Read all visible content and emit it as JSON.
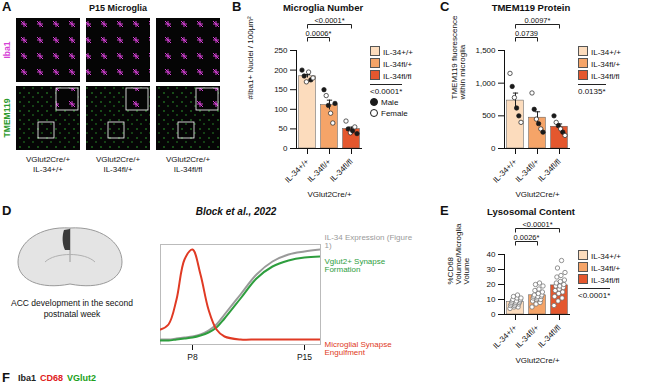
{
  "panel_A": {
    "panel": "A",
    "title": "P15 Microglia",
    "rows": [
      "Iba1",
      "TMEM119"
    ],
    "columns": [
      [
        "VGlut2Cre/+",
        "IL-34+/+"
      ],
      [
        "VGlut2Cre/+",
        "IL-34fl/+"
      ],
      [
        "VGlut2Cre/+",
        "IL-34fl/fl"
      ]
    ]
  },
  "marker_legend": {
    "panel": "B",
    "labels": [
      "Male",
      "Female"
    ]
  },
  "panel_F": {
    "panel": "F",
    "labels": [
      "Iba1",
      "CD68",
      "VGlut2"
    ],
    "colors": [
      "#222222",
      "#e02020",
      "#20a020"
    ]
  },
  "chart_data": [
    {
      "type": "bar",
      "panel": "B",
      "title": "Microglia Number",
      "ylabel": "#Iba1+ Nuclei / 100µm²",
      "xlabel": "VGlut2Cre/+",
      "categories": [
        "IL-34+/+",
        "IL-34fl/+",
        "IL-34fl/fl"
      ],
      "values": [
        184.2,
        110.8,
        49.7
      ],
      "errors": [
        4.5,
        12.5,
        4.8
      ],
      "colors": [
        "#fcdcbd",
        "#f5a468",
        "#e4572e"
      ],
      "points": [
        [
          200,
          185,
          170,
          195,
          175,
          180
        ],
        [
          150,
          135,
          110,
          90,
          65,
          115
        ],
        [
          70,
          50,
          40,
          45,
          55,
          38
        ]
      ],
      "point_groups": [
        [
          "Male",
          "Male",
          "Female",
          "Female",
          "Male",
          "Female"
        ],
        [
          "Male",
          "Female",
          "Male",
          "Female",
          "Female",
          "Male"
        ],
        [
          "Female",
          "Male",
          "Female",
          "Male",
          "Female",
          "Male"
        ]
      ],
      "comparisons": [
        {
          "from": 0,
          "to": 1,
          "label": "0.0006*"
        },
        {
          "from": 0,
          "to": 2,
          "label": "<0.0001*"
        }
      ],
      "anova": "<0.0001*",
      "ylim": [
        0,
        250
      ],
      "yticks": [
        0,
        50,
        100,
        150,
        200,
        250
      ],
      "legend": "right"
    },
    {
      "type": "bar",
      "panel": "C",
      "title": "TMEM119 Protein",
      "ylabel": "TMEM119 fluorescence within microglia",
      "xlabel": "VGlut2Cre/+",
      "categories": [
        "IL-34+/+",
        "IL-34fl/+",
        "IL-34fl/fl"
      ],
      "values": [
        733.3,
        471.7,
        333.3
      ],
      "errors": [
        115,
        90,
        43
      ],
      "colors": [
        "#fcdcbd",
        "#f5a468",
        "#e4572e"
      ],
      "points": [
        [
          1150,
          950,
          780,
          620,
          500,
          400
        ],
        [
          850,
          600,
          450,
          380,
          300,
          250
        ],
        [
          500,
          400,
          350,
          300,
          250,
          200
        ]
      ],
      "point_groups": [
        [
          "Female",
          "Male",
          "Female",
          "Male",
          "Male",
          "Female"
        ],
        [
          "Female",
          "Male",
          "Female",
          "Male",
          "Female",
          "Male"
        ],
        [
          "Male",
          "Female",
          "Male",
          "Female",
          "Male",
          "Female"
        ]
      ],
      "comparisons": [
        {
          "from": 0,
          "to": 1,
          "label": "0.0739"
        },
        {
          "from": 0,
          "to": 2,
          "label": "0.0097*"
        }
      ],
      "anova": "0.0135*",
      "ylim": [
        0,
        1500
      ],
      "yticks": [
        0,
        500,
        1000,
        1500
      ],
      "legend": "right"
    },
    {
      "type": "bar",
      "panel": "E",
      "title": "Lysosomal Content",
      "ylabel": "%CD68 Volume/Microglia Volume",
      "xlabel": "VGlut2Cre/+",
      "categories": [
        "IL-34+/+",
        "IL-34fl/+",
        "IL-34fl/fl"
      ],
      "values": [
        8.3,
        12.8,
        19.4
      ],
      "errors": [
        0.5,
        1.0,
        1.6
      ],
      "colors": [
        "#fcdcbd",
        "#f5a468",
        "#e4572e"
      ],
      "points": [
        [
          4,
          5,
          5,
          6,
          6,
          7,
          7,
          7,
          8,
          8,
          8,
          9,
          9,
          9,
          10,
          10,
          11,
          11,
          12,
          13
        ],
        [
          5,
          7,
          8,
          9,
          10,
          10,
          11,
          11,
          12,
          12,
          12,
          13,
          13,
          14,
          15,
          16,
          17,
          19,
          20,
          21
        ],
        [
          6,
          9,
          11,
          12,
          14,
          15,
          16,
          17,
          18,
          19,
          19,
          20,
          21,
          22,
          23,
          25,
          26,
          28,
          31,
          36
        ]
      ],
      "comparisons": [
        {
          "from": 0,
          "to": 1,
          "label": "0.0026*"
        },
        {
          "from": 0,
          "to": 2,
          "label": "<0.0001*"
        }
      ],
      "anova": "<0.0001*",
      "ylim": [
        0,
        40
      ],
      "yticks": [
        0,
        10,
        20,
        30,
        40
      ],
      "legend": "right"
    },
    {
      "type": "line",
      "panel": "D",
      "title": "Block et al., 2022",
      "annotation": "ACC development in the second postnatal week",
      "x": [
        6,
        6.5,
        7,
        7.5,
        8,
        8.5,
        9,
        9.5,
        10,
        11,
        12,
        13,
        14,
        15,
        16
      ],
      "xlim": [
        6,
        16
      ],
      "xticks": [
        {
          "value": 8,
          "label": "P8"
        },
        {
          "value": 15,
          "label": "P15"
        }
      ],
      "ylim": [
        0,
        1
      ],
      "yticks": [],
      "tick_labels": "x",
      "series": [
        {
          "name": "IL-34 Expression (Figure 1)",
          "color": "#9a9a9a",
          "values": [
            0.05,
            0.05,
            0.06,
            0.07,
            0.08,
            0.1,
            0.14,
            0.2,
            0.3,
            0.5,
            0.7,
            0.83,
            0.9,
            0.93,
            0.95
          ]
        },
        {
          "name": "Vglut2+ Synapse Formation",
          "color": "#2e9e3e",
          "values": [
            0.04,
            0.04,
            0.05,
            0.06,
            0.07,
            0.09,
            0.12,
            0.17,
            0.26,
            0.46,
            0.66,
            0.78,
            0.84,
            0.87,
            0.88
          ]
        },
        {
          "name": "Microglial Synapse Engulfment",
          "color": "#e03a24",
          "values": [
            0.15,
            0.2,
            0.45,
            0.85,
            0.95,
            0.7,
            0.35,
            0.15,
            0.08,
            0.05,
            0.05,
            0.05,
            0.05,
            0.05,
            0.05
          ]
        }
      ]
    }
  ]
}
